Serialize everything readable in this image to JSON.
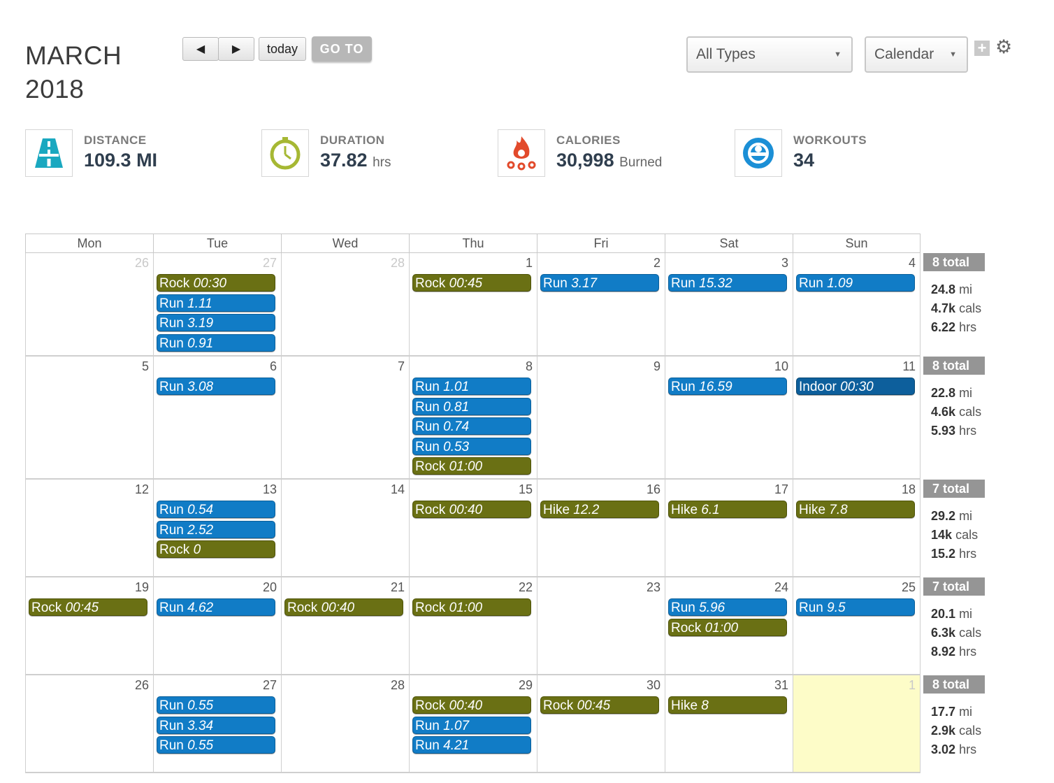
{
  "header": {
    "month": "MARCH",
    "year": "2018",
    "prev_label": "◀",
    "next_label": "▶",
    "today_label": "today",
    "goto_label": "GO TO",
    "type_filter": "All Types",
    "view_select": "Calendar",
    "add_label": "+",
    "settings_icon": "gear-icon"
  },
  "stats": [
    {
      "icon": "road-icon",
      "label": "DISTANCE",
      "value": "109.3 MI",
      "unit": ""
    },
    {
      "icon": "stopwatch-icon",
      "label": "DURATION",
      "value": "37.82",
      "unit": "hrs"
    },
    {
      "icon": "flame-icon",
      "label": "CALORIES",
      "value": "30,998",
      "unit": "Burned"
    },
    {
      "icon": "workout-icon",
      "label": "WORKOUTS",
      "value": "34",
      "unit": ""
    }
  ],
  "colors": {
    "run": "#117cc6",
    "rock": "#6a7014",
    "hike": "#6a7014",
    "indoor": "#0d5f9c",
    "today_bg": "#fdfcc8"
  },
  "weekdays": [
    "Mon",
    "Tue",
    "Wed",
    "Thu",
    "Fri",
    "Sat",
    "Sun"
  ],
  "weeks": [
    {
      "days": [
        {
          "num": "26",
          "other": true,
          "events": []
        },
        {
          "num": "27",
          "other": true,
          "events": [
            {
              "type": "rock",
              "name": "Rock",
              "value": "00:30"
            },
            {
              "type": "run",
              "name": "Run",
              "value": "1.11"
            },
            {
              "type": "run",
              "name": "Run",
              "value": "3.19"
            },
            {
              "type": "run",
              "name": "Run",
              "value": "0.91"
            }
          ]
        },
        {
          "num": "28",
          "other": true,
          "events": []
        },
        {
          "num": "1",
          "events": [
            {
              "type": "rock",
              "name": "Rock",
              "value": "00:45"
            }
          ]
        },
        {
          "num": "2",
          "events": [
            {
              "type": "run",
              "name": "Run",
              "value": "3.17"
            }
          ]
        },
        {
          "num": "3",
          "events": [
            {
              "type": "run",
              "name": "Run",
              "value": "15.32"
            }
          ]
        },
        {
          "num": "4",
          "events": [
            {
              "type": "run",
              "name": "Run",
              "value": "1.09"
            }
          ]
        }
      ],
      "summary": {
        "total": "8 total",
        "mi": "24.8",
        "cals": "4.7k",
        "hrs": "6.22"
      }
    },
    {
      "days": [
        {
          "num": "5",
          "events": []
        },
        {
          "num": "6",
          "events": [
            {
              "type": "run",
              "name": "Run",
              "value": "3.08"
            }
          ]
        },
        {
          "num": "7",
          "events": []
        },
        {
          "num": "8",
          "events": [
            {
              "type": "run",
              "name": "Run",
              "value": "1.01"
            },
            {
              "type": "run",
              "name": "Run",
              "value": "0.81"
            },
            {
              "type": "run",
              "name": "Run",
              "value": "0.74"
            },
            {
              "type": "run",
              "name": "Run",
              "value": "0.53"
            },
            {
              "type": "rock",
              "name": "Rock",
              "value": "01:00"
            }
          ]
        },
        {
          "num": "9",
          "events": []
        },
        {
          "num": "10",
          "events": [
            {
              "type": "run",
              "name": "Run",
              "value": "16.59"
            }
          ]
        },
        {
          "num": "11",
          "events": [
            {
              "type": "indoor",
              "name": "Indoor",
              "value": "00:30"
            }
          ]
        }
      ],
      "summary": {
        "total": "8 total",
        "mi": "22.8",
        "cals": "4.6k",
        "hrs": "5.93"
      }
    },
    {
      "days": [
        {
          "num": "12",
          "events": []
        },
        {
          "num": "13",
          "events": [
            {
              "type": "run",
              "name": "Run",
              "value": "0.54"
            },
            {
              "type": "run",
              "name": "Run",
              "value": "2.52"
            },
            {
              "type": "rock",
              "name": "Rock",
              "value": "0"
            }
          ]
        },
        {
          "num": "14",
          "events": []
        },
        {
          "num": "15",
          "events": [
            {
              "type": "rock",
              "name": "Rock",
              "value": "00:40"
            }
          ]
        },
        {
          "num": "16",
          "events": [
            {
              "type": "hike",
              "name": "Hike",
              "value": "12.2"
            }
          ]
        },
        {
          "num": "17",
          "events": [
            {
              "type": "hike",
              "name": "Hike",
              "value": "6.1"
            }
          ]
        },
        {
          "num": "18",
          "events": [
            {
              "type": "hike",
              "name": "Hike",
              "value": "7.8"
            }
          ]
        }
      ],
      "summary": {
        "total": "7 total",
        "mi": "29.2",
        "cals": "14k",
        "hrs": "15.2"
      }
    },
    {
      "days": [
        {
          "num": "19",
          "events": [
            {
              "type": "rock",
              "name": "Rock",
              "value": "00:45"
            }
          ]
        },
        {
          "num": "20",
          "events": [
            {
              "type": "run",
              "name": "Run",
              "value": "4.62"
            }
          ]
        },
        {
          "num": "21",
          "events": [
            {
              "type": "rock",
              "name": "Rock",
              "value": "00:40"
            }
          ]
        },
        {
          "num": "22",
          "events": [
            {
              "type": "rock",
              "name": "Rock",
              "value": "01:00"
            }
          ]
        },
        {
          "num": "23",
          "events": []
        },
        {
          "num": "24",
          "events": [
            {
              "type": "run",
              "name": "Run",
              "value": "5.96"
            },
            {
              "type": "rock",
              "name": "Rock",
              "value": "01:00"
            }
          ]
        },
        {
          "num": "25",
          "events": [
            {
              "type": "run",
              "name": "Run",
              "value": "9.5"
            }
          ]
        }
      ],
      "summary": {
        "total": "7 total",
        "mi": "20.1",
        "cals": "6.3k",
        "hrs": "8.92"
      }
    },
    {
      "days": [
        {
          "num": "26",
          "events": []
        },
        {
          "num": "27",
          "events": [
            {
              "type": "run",
              "name": "Run",
              "value": "0.55"
            },
            {
              "type": "run",
              "name": "Run",
              "value": "3.34"
            },
            {
              "type": "run",
              "name": "Run",
              "value": "0.55"
            }
          ]
        },
        {
          "num": "28",
          "events": []
        },
        {
          "num": "29",
          "events": [
            {
              "type": "rock",
              "name": "Rock",
              "value": "00:40"
            },
            {
              "type": "run",
              "name": "Run",
              "value": "1.07"
            },
            {
              "type": "run",
              "name": "Run",
              "value": "4.21"
            }
          ]
        },
        {
          "num": "30",
          "events": [
            {
              "type": "rock",
              "name": "Rock",
              "value": "00:45"
            }
          ]
        },
        {
          "num": "31",
          "events": [
            {
              "type": "hike",
              "name": "Hike",
              "value": "8"
            }
          ]
        },
        {
          "num": "1",
          "other": true,
          "today": true,
          "events": []
        }
      ],
      "summary": {
        "total": "8 total",
        "mi": "17.7",
        "cals": "2.9k",
        "hrs": "3.02"
      }
    }
  ],
  "summary_units": {
    "mi": "mi",
    "cals": "cals",
    "hrs": "hrs"
  }
}
